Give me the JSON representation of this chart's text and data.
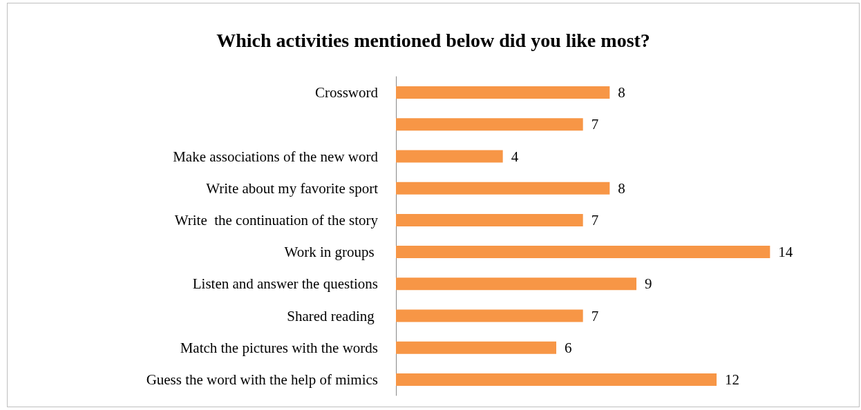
{
  "chart_data": {
    "type": "bar",
    "orientation": "horizontal",
    "title": "Which activities mentioned below did you like most?",
    "categories": [
      "Crossword",
      null,
      "Make associations of the new word",
      "Write about my favorite sport",
      "Write  the continuation of the story",
      "Work in groups ",
      "Listen and answer the questions",
      "Shared reading ",
      "Match the pictures with the words",
      "Guess the word with the help of mimics"
    ],
    "values": [
      8,
      7,
      4,
      8,
      7,
      14,
      9,
      7,
      6,
      12
    ],
    "color": "#f79646",
    "data_labels": true
  }
}
